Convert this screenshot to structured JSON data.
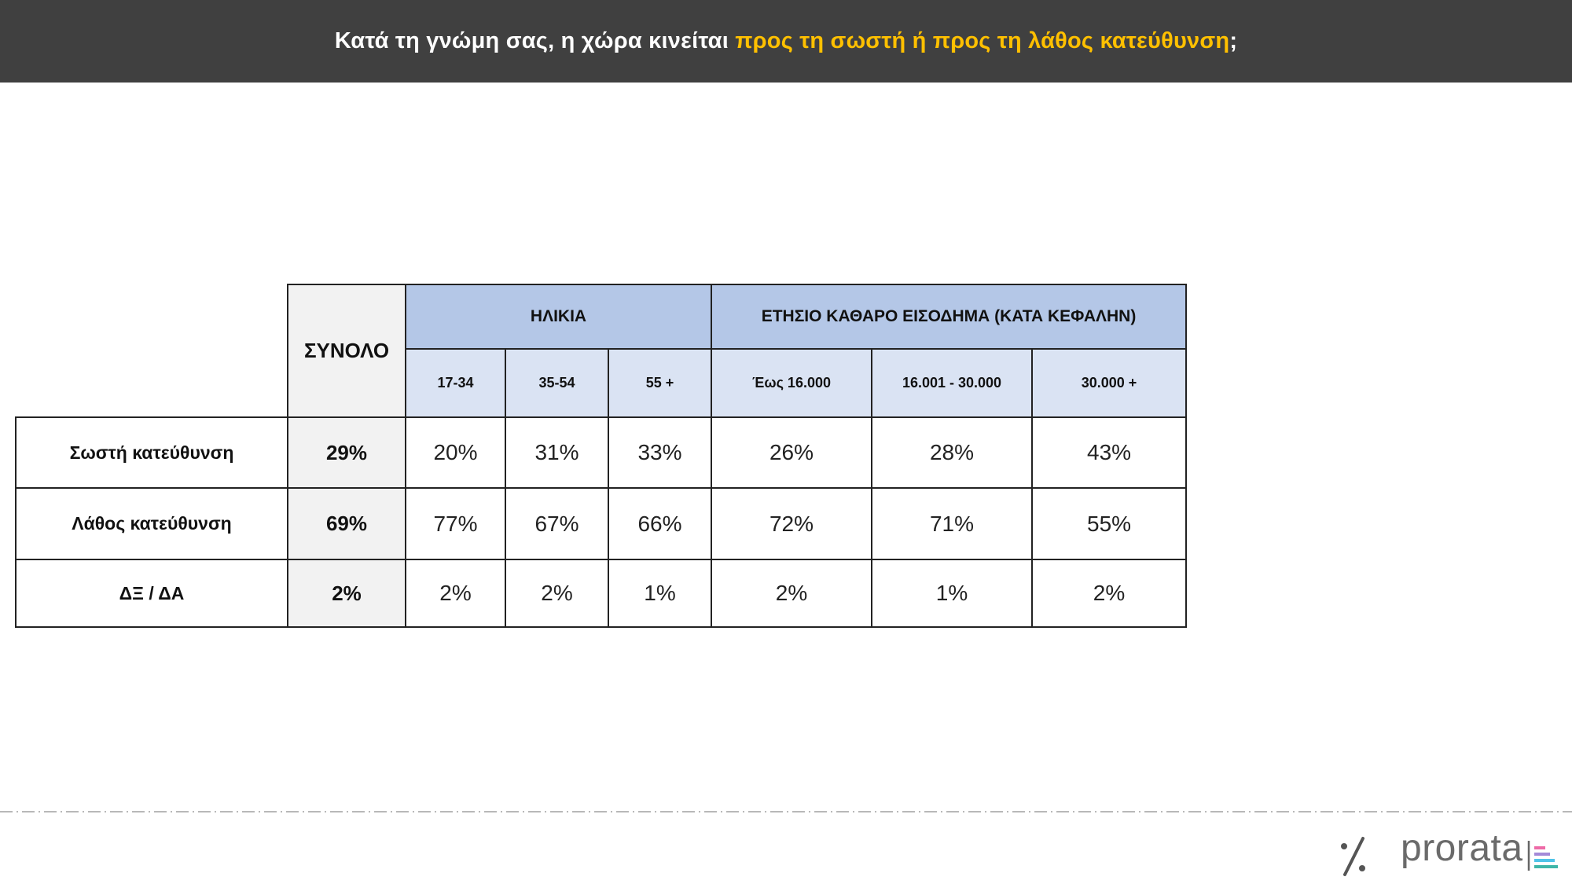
{
  "header": {
    "title_prefix": "Κατά τη γνώμη σας, η χώρα κινείται",
    "title_highlight": "προς τη σωστή ή προς τη λάθος κατεύθυνση",
    "title_suffix": ";"
  },
  "chart_data": {
    "type": "table",
    "total_label": "ΣΥΝΟΛΟ",
    "column_groups": [
      {
        "name": "ΗΛΙΚΙΑ",
        "columns": [
          "17-34",
          "35-54",
          "55 +"
        ]
      },
      {
        "name": "ΕΤΗΣΙΟ ΚΑΘΑΡΟ ΕΙΣΟΔΗΜΑ (ΚΑΤΑ ΚΕΦΑΛΗΝ)",
        "columns": [
          "Έως 16.000",
          "16.001 - 30.000",
          "30.000 +"
        ]
      }
    ],
    "rows": [
      {
        "label": "Σωστή κατεύθυνση",
        "total": "29%",
        "values": [
          "20%",
          "31%",
          "33%",
          "26%",
          "28%",
          "43%"
        ]
      },
      {
        "label": "Λάθος κατεύθυνση",
        "total": "69%",
        "values": [
          "77%",
          "67%",
          "66%",
          "72%",
          "71%",
          "55%"
        ]
      },
      {
        "label": "ΔΞ / ΔΑ",
        "total": "2%",
        "values": [
          "2%",
          "2%",
          "1%",
          "2%",
          "1%",
          "2%"
        ]
      }
    ]
  },
  "logo": {
    "wordmark": "prorata",
    "mark_icon": "percent-icon"
  },
  "colors": {
    "header_bg": "#404040",
    "title_text": "#ffffff",
    "title_highlight": "#ffc000",
    "group_header_bg": "#b4c7e7",
    "sub_header_bg": "#dae3f3",
    "total_column_bg": "#f2f2f2"
  }
}
